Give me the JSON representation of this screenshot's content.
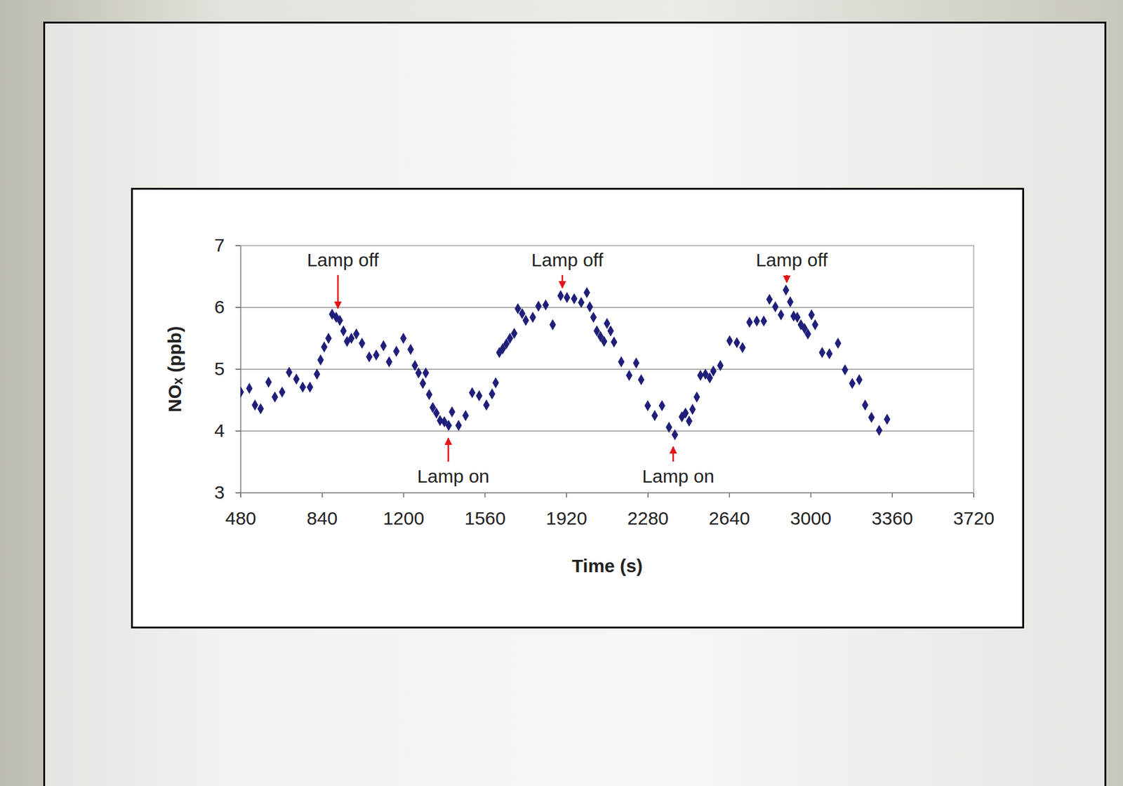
{
  "chart_data": {
    "type": "scatter",
    "x_label": "Time (s)",
    "y_label": "NOₓ (ppb)",
    "color": "#1f1f7a",
    "marker": "diamond",
    "grid": true,
    "xlim": [
      480,
      3720
    ],
    "xticks": [
      480,
      840,
      1200,
      1560,
      1920,
      2280,
      2640,
      3000,
      3360,
      3720
    ],
    "ylim": [
      3,
      7
    ],
    "yticks": [
      3,
      4,
      5,
      6,
      7
    ],
    "x": [
      480,
      518,
      543,
      568,
      603,
      631,
      663,
      694,
      726,
      754,
      786,
      817,
      833,
      849,
      868,
      884,
      902,
      918,
      934,
      950,
      969,
      991,
      1016,
      1048,
      1079,
      1111,
      1136,
      1168,
      1199,
      1231,
      1250,
      1266,
      1285,
      1298,
      1313,
      1329,
      1345,
      1361,
      1380,
      1399,
      1414,
      1443,
      1474,
      1503,
      1534,
      1566,
      1591,
      1607,
      1623,
      1638,
      1654,
      1670,
      1689,
      1705,
      1724,
      1740,
      1771,
      1796,
      1828,
      1859,
      1894,
      1922,
      1954,
      1985,
      2010,
      2023,
      2039,
      2054,
      2070,
      2086,
      2099,
      2115,
      2130,
      2162,
      2197,
      2228,
      2250,
      2279,
      2310,
      2342,
      2373,
      2399,
      2430,
      2446,
      2462,
      2477,
      2496,
      2512,
      2534,
      2553,
      2569,
      2600,
      2641,
      2673,
      2698,
      2729,
      2761,
      2792,
      2817,
      2843,
      2868,
      2890,
      2909,
      2924,
      2940,
      2956,
      2972,
      2987,
      3003,
      3019,
      3050,
      3082,
      3120,
      3151,
      3183,
      3214,
      3240,
      3268,
      3302,
      3337
    ],
    "values": [
      4.63,
      4.69,
      4.42,
      4.36,
      4.79,
      4.55,
      4.63,
      4.95,
      4.84,
      4.71,
      4.71,
      4.92,
      5.15,
      5.36,
      5.5,
      5.89,
      5.84,
      5.79,
      5.62,
      5.45,
      5.5,
      5.57,
      5.42,
      5.2,
      5.23,
      5.38,
      5.12,
      5.29,
      5.5,
      5.32,
      5.06,
      4.94,
      4.77,
      4.94,
      4.59,
      4.38,
      4.29,
      4.17,
      4.15,
      4.09,
      4.31,
      4.09,
      4.25,
      4.62,
      4.57,
      4.42,
      4.6,
      4.78,
      5.27,
      5.33,
      5.41,
      5.5,
      5.58,
      5.98,
      5.9,
      5.79,
      5.84,
      6.02,
      6.04,
      5.72,
      6.19,
      6.16,
      6.14,
      6.08,
      6.24,
      6.01,
      5.84,
      5.62,
      5.53,
      5.45,
      5.74,
      5.62,
      5.44,
      5.12,
      4.9,
      5.1,
      4.83,
      4.41,
      4.25,
      4.41,
      4.06,
      3.94,
      4.23,
      4.29,
      4.16,
      4.35,
      4.55,
      4.9,
      4.92,
      4.86,
      4.97,
      5.06,
      5.46,
      5.43,
      5.35,
      5.76,
      5.78,
      5.78,
      6.13,
      6.01,
      5.88,
      6.28,
      6.09,
      5.86,
      5.84,
      5.72,
      5.66,
      5.57,
      5.88,
      5.72,
      5.27,
      5.25,
      5.42,
      4.99,
      4.77,
      4.83,
      4.42,
      4.22,
      4.01,
      4.19
    ],
    "annotations": [
      {
        "text": "Lamp off",
        "x": 911,
        "y": 5.98,
        "position": "top"
      },
      {
        "text": "Lamp on",
        "x": 1399,
        "y": 3.88,
        "position": "bottom"
      },
      {
        "text": "Lamp off",
        "x": 1903,
        "y": 6.31,
        "position": "top"
      },
      {
        "text": "Lamp on",
        "x": 2393,
        "y": 3.74,
        "position": "bottom"
      },
      {
        "text": "Lamp off",
        "x": 2895,
        "y": 6.4,
        "position": "top"
      }
    ]
  }
}
